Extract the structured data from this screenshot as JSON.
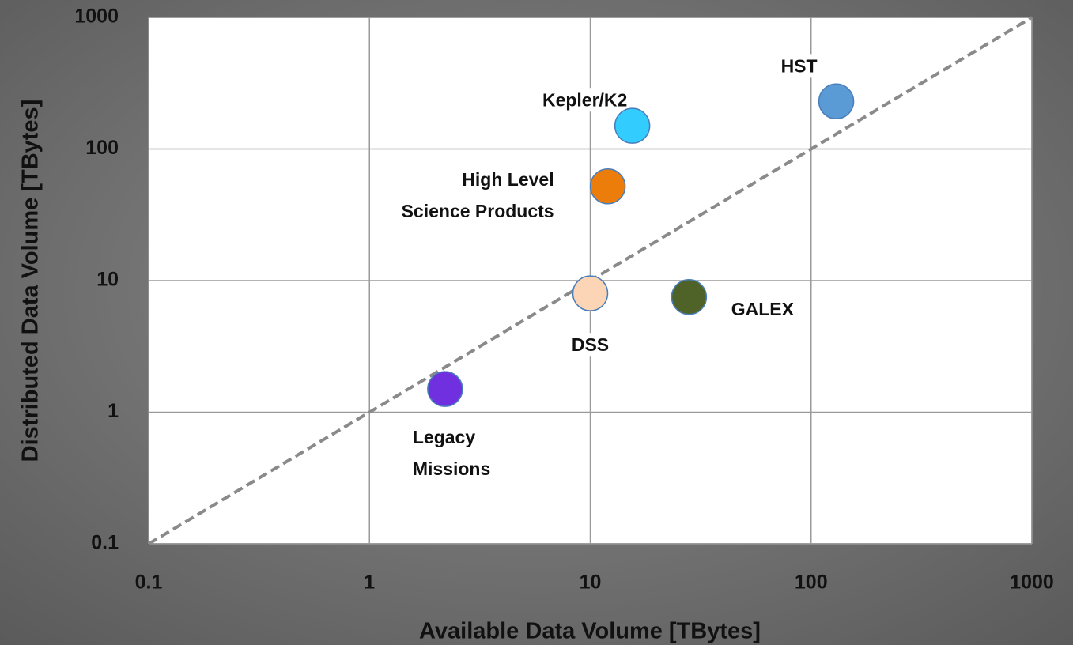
{
  "chart_data": {
    "type": "scatter",
    "x_label": "Available Data Volume [TBytes]",
    "y_label": "Distributed Data Volume [TBytes]",
    "xlog": true,
    "ylog": true,
    "grid": true,
    "diagonal": true,
    "xlim": [
      0.1,
      1000
    ],
    "ylim": [
      0.1,
      1000
    ],
    "xticks": [
      0.1,
      1,
      10,
      100,
      1000
    ],
    "yticks": [
      0.1,
      1,
      10,
      100,
      1000
    ],
    "series": [
      {
        "name": "HST",
        "color": "#5b9bd5",
        "x": [
          130
        ],
        "y": [
          230
        ]
      },
      {
        "name": "Kepler/K2",
        "color": "#33ccff",
        "x": [
          15.5
        ],
        "y": [
          150
        ]
      },
      {
        "name": "High Level Science Products",
        "color": "#ed7d0b",
        "x": [
          12
        ],
        "y": [
          52
        ]
      },
      {
        "name": "DSS",
        "color": "#fbd5b5",
        "x": [
          10
        ],
        "y": [
          8
        ]
      },
      {
        "name": "GALEX",
        "color": "#4f6228",
        "x": [
          28
        ],
        "y": [
          7.5
        ]
      },
      {
        "name": "Legacy Missions",
        "color": "#7030e0",
        "x": [
          2.2
        ],
        "y": [
          1.5
        ]
      }
    ]
  }
}
